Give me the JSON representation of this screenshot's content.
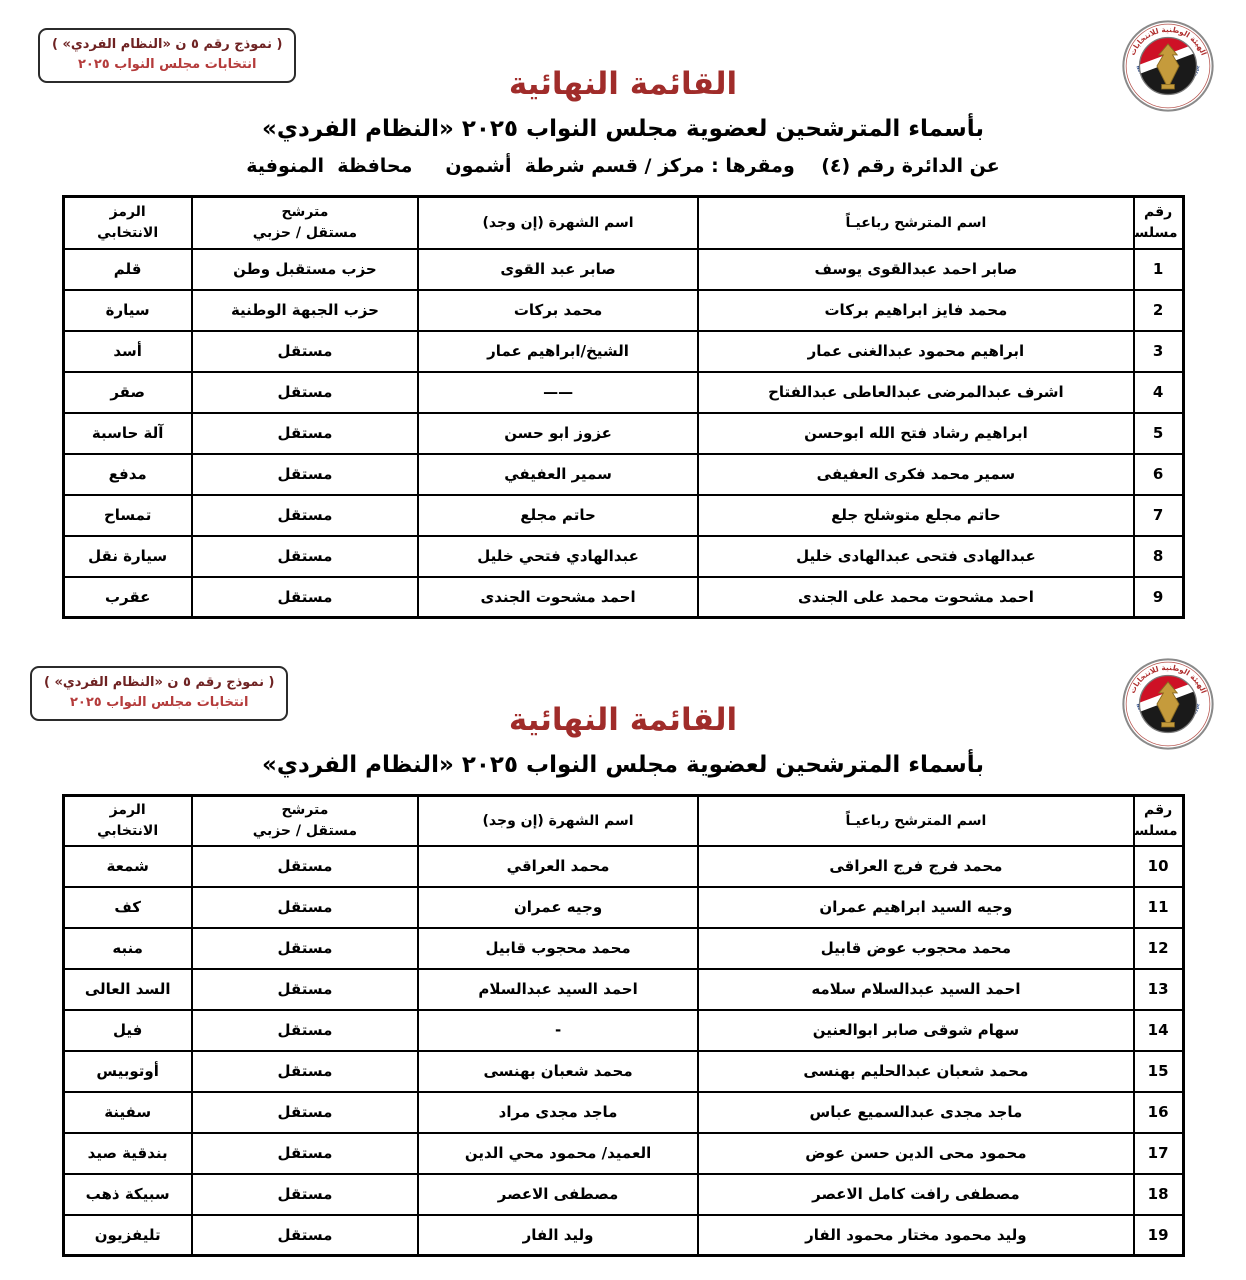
{
  "badge": {
    "line1": "( نموذج رقم ٥ ن «النظام الفردي» )",
    "line2": "انتخابات مجلس النواب ٢٠٢٥"
  },
  "logo": {
    "arc_top": "الهيئة الوطنية للانتخابات",
    "arc_bottom": "National Election Authority - Egypt",
    "flag_red": "#ce1126",
    "flag_black": "#1a1a1a",
    "eagle_gold": "#C59B3C"
  },
  "headers": {
    "serial": "رقم\nمسلسل",
    "name": "اسم المترشح رباعيـاً",
    "famous": "اسم الشهرة (إن وجد)",
    "party": "مترشح\nمستقل / حزبي",
    "symbol": "الرمز\nالانتخابي"
  },
  "sections": [
    {
      "title": "القائمة النهائية",
      "subtitle": "بأسماء المترشحين لعضوية مجلس النواب ٢٠٢٥ «النظام الفردي»",
      "district_line": "عن الدائرة رقم (٤)    ومقرها : مركز / قسم شرطة  أشمون     محافظة  المنوفية",
      "rows": [
        {
          "serial": "1",
          "name": "صابر احمد عبدالقوى يوسف",
          "famous": "صابر عبد القوى",
          "party": "حزب مستقبل وطن",
          "symbol": "قلم"
        },
        {
          "serial": "2",
          "name": "محمد فايز ابراهيم بركات",
          "famous": "محمد بركات",
          "party": "حزب الجبهة الوطنية",
          "symbol": "سيارة"
        },
        {
          "serial": "3",
          "name": "ابراهيم محمود عبدالغنى عمار",
          "famous": "الشيخ/ابراهيم عمار",
          "party": "مستقل",
          "symbol": "أسد"
        },
        {
          "serial": "4",
          "name": "اشرف عبدالمرضى عبدالعاطى عبدالفتاح",
          "famous": "——",
          "party": "مستقل",
          "symbol": "صقر"
        },
        {
          "serial": "5",
          "name": "ابراهيم رشاد فتح الله ابوحسن",
          "famous": "عزوز ابو حسن",
          "party": "مستقل",
          "symbol": "آلة حاسبة"
        },
        {
          "serial": "6",
          "name": "سمير محمد فكرى العفيفى",
          "famous": "سمير العفيفي",
          "party": "مستقل",
          "symbol": "مدفع"
        },
        {
          "serial": "7",
          "name": "حاتم مجلع متوشلح جلع",
          "famous": "حاتم مجلع",
          "party": "مستقل",
          "symbol": "تمساح"
        },
        {
          "serial": "8",
          "name": "عبدالهادى فتحى عبدالهادى خليل",
          "famous": "عبدالهادي فتحي خليل",
          "party": "مستقل",
          "symbol": "سيارة نقل"
        },
        {
          "serial": "9",
          "name": "احمد مشحوت محمد على الجندى",
          "famous": "احمد مشحوت الجندى",
          "party": "مستقل",
          "symbol": "عقرب"
        }
      ]
    },
    {
      "title": "القائمة النهائية",
      "subtitle": "بأسماء المترشحين لعضوية مجلس النواب ٢٠٢٥ «النظام الفردي»",
      "rows": [
        {
          "serial": "10",
          "name": "محمد فرج فرج العراقى",
          "famous": "محمد العراقي",
          "party": "مستقل",
          "symbol": "شمعة"
        },
        {
          "serial": "11",
          "name": "وجيه السيد ابراهيم عمران",
          "famous": "وجيه عمران",
          "party": "مستقل",
          "symbol": "كف"
        },
        {
          "serial": "12",
          "name": "محمد محجوب عوض قابيل",
          "famous": "محمد محجوب قابيل",
          "party": "مستقل",
          "symbol": "منبه"
        },
        {
          "serial": "13",
          "name": "احمد السيد عبدالسلام سلامه",
          "famous": "احمد السيد عبدالسلام",
          "party": "مستقل",
          "symbol": "السد العالى"
        },
        {
          "serial": "14",
          "name": "سهام شوقى صابر ابوالعنين",
          "famous": "-",
          "party": "مستقل",
          "symbol": "فيل"
        },
        {
          "serial": "15",
          "name": "محمد شعبان عبدالحليم بهنسى",
          "famous": "محمد شعبان بهنسى",
          "party": "مستقل",
          "symbol": "أوتوبيس"
        },
        {
          "serial": "16",
          "name": "ماجد مجدى عبدالسميع عباس",
          "famous": "ماجد مجدى مراد",
          "party": "مستقل",
          "symbol": "سفينة"
        },
        {
          "serial": "17",
          "name": "محمود محى الدين حسن عوض",
          "famous": "العميد/ محمود محي الدين",
          "party": "مستقل",
          "symbol": "بندقية صيد"
        },
        {
          "serial": "18",
          "name": "مصطفى رافت كامل الاعصر",
          "famous": "مصطفى الاعصر",
          "party": "مستقل",
          "symbol": "سبيكة ذهب"
        },
        {
          "serial": "19",
          "name": "وليد محمود مختار محمود الفار",
          "famous": "وليد الفار",
          "party": "مستقل",
          "symbol": "تليفزيون"
        }
      ]
    }
  ]
}
